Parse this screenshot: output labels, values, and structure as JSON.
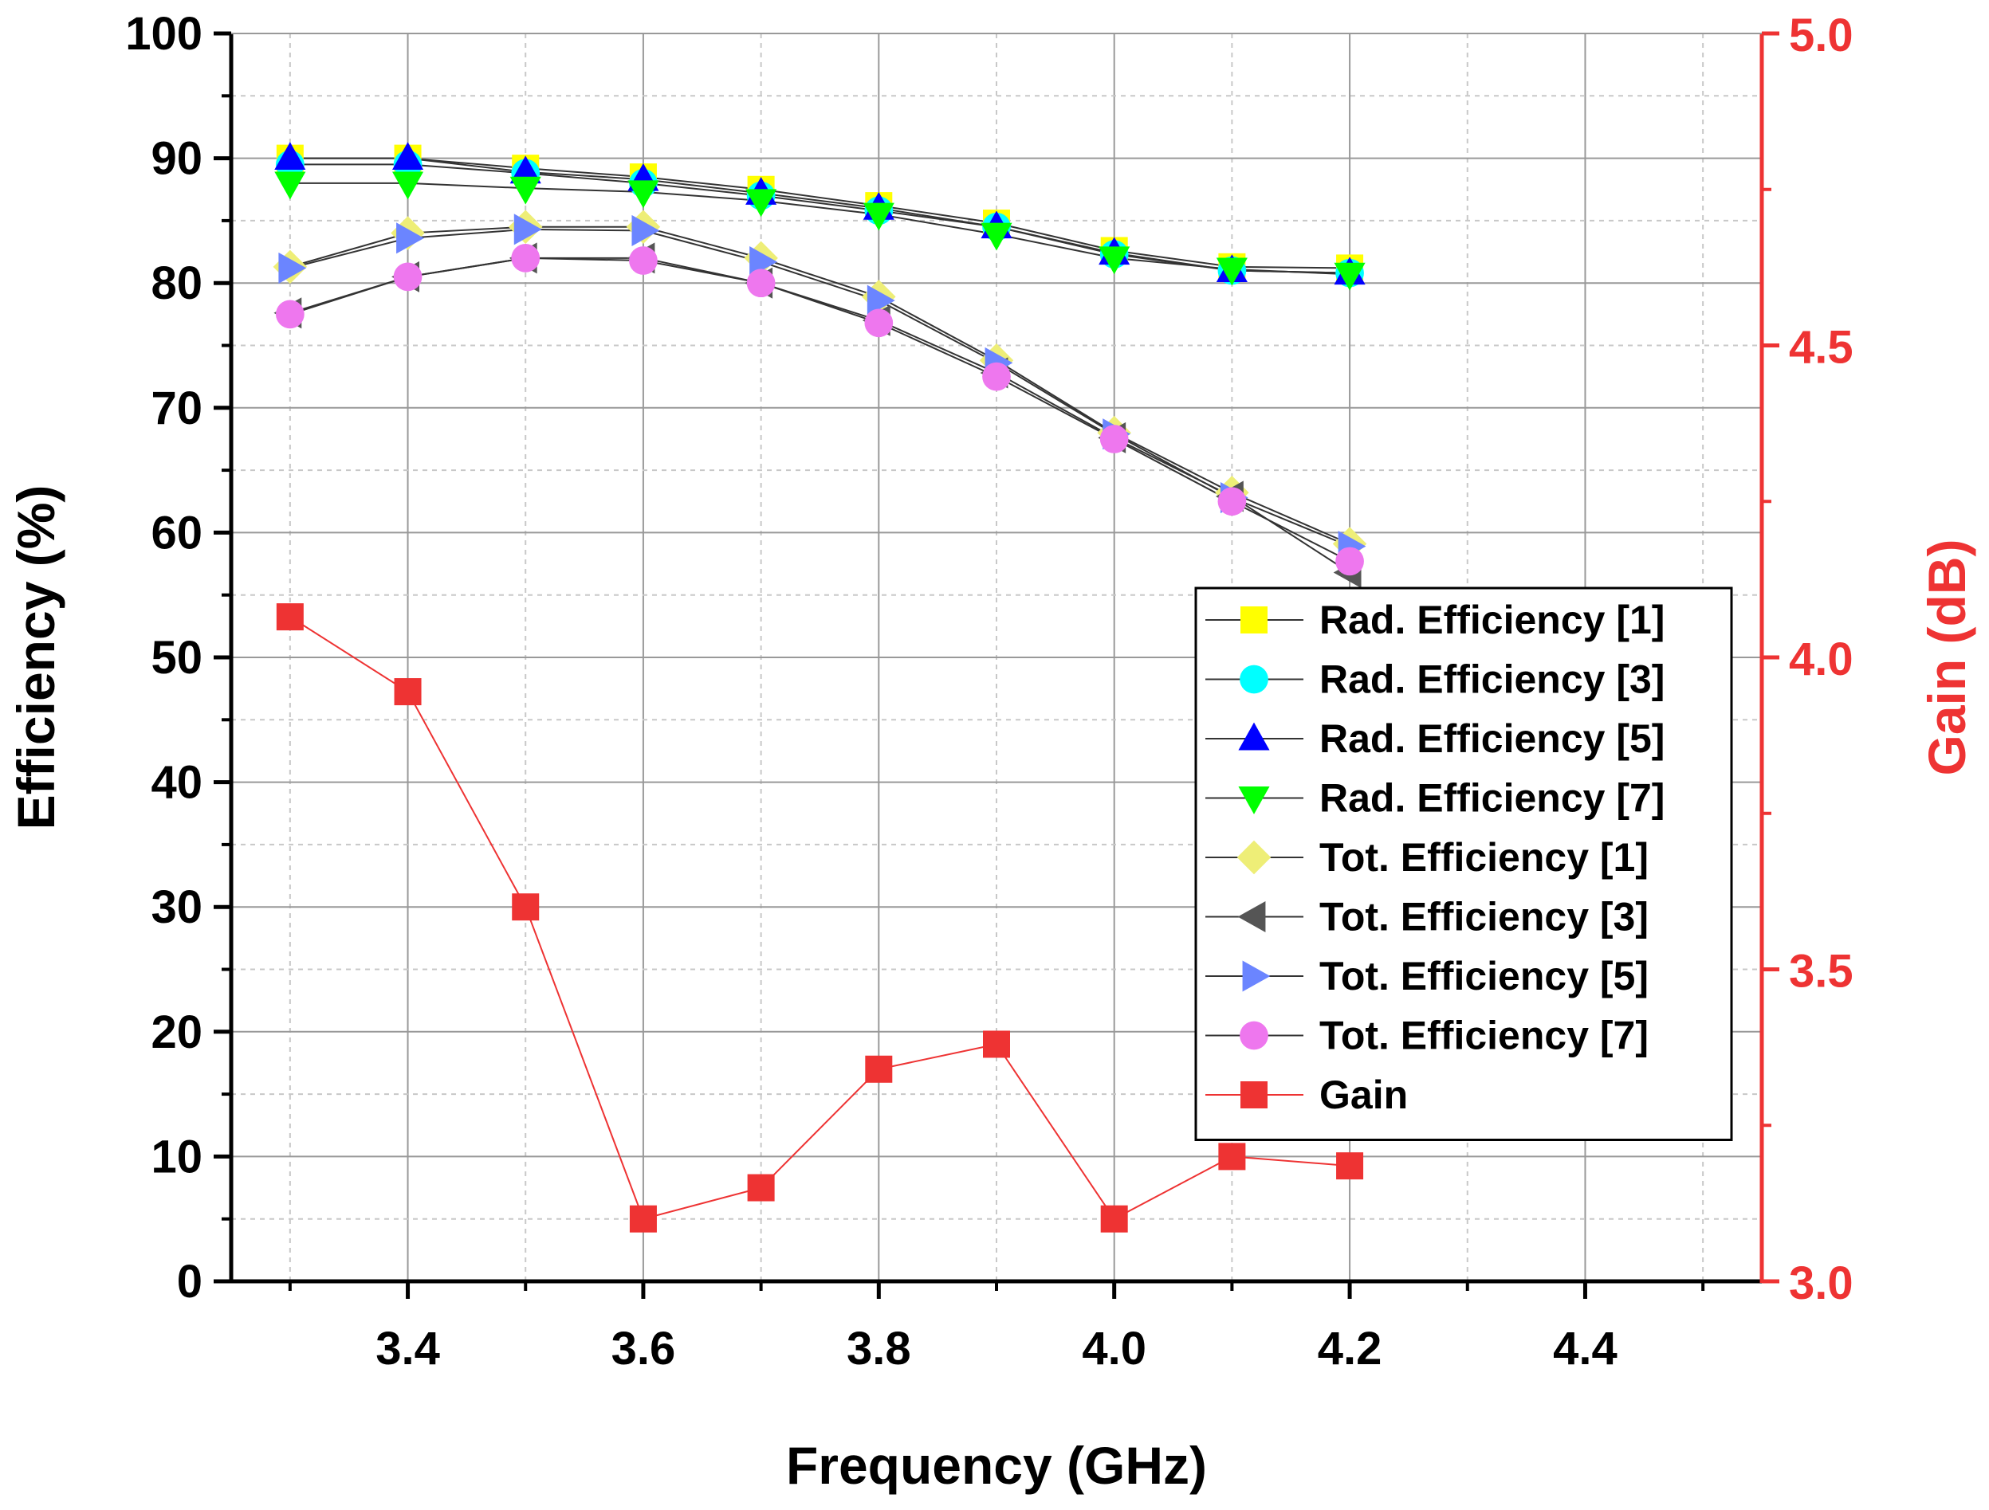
{
  "chart_data": {
    "type": "line",
    "title": "",
    "xlabel": "Frequency (GHz)",
    "ylabel": "Efficiency (%)",
    "y2label": "Gain (dB)",
    "xlim": [
      3.25,
      4.55
    ],
    "ylim": [
      0,
      100
    ],
    "y2lim": [
      3.0,
      5.0
    ],
    "xticks": [
      "3.4",
      "3.6",
      "3.8",
      "4.0",
      "4.2",
      "4.4"
    ],
    "yticks": [
      "0",
      "10",
      "20",
      "30",
      "40",
      "50",
      "60",
      "70",
      "80",
      "90",
      "100"
    ],
    "y2ticks": [
      "3.0",
      "3.5",
      "4.0",
      "4.5",
      "5.0"
    ],
    "grid": true,
    "legend_position": "right-middle",
    "x": [
      3.3,
      3.4,
      3.5,
      3.6,
      3.7,
      3.8,
      3.9,
      4.0,
      4.1,
      4.2
    ],
    "series": [
      {
        "name": "Rad. Efficiency [1]",
        "marker": "square",
        "color": "#ffff00",
        "axis": "left",
        "values": [
          90.0,
          90.0,
          89.2,
          88.5,
          87.5,
          86.2,
          84.8,
          82.6,
          81.3,
          81.2
        ]
      },
      {
        "name": "Rad. Efficiency [3]",
        "marker": "circle",
        "color": "#00ffff",
        "axis": "left",
        "values": [
          89.5,
          89.5,
          88.8,
          88.0,
          87.0,
          85.8,
          84.5,
          82.3,
          81.0,
          80.8
        ]
      },
      {
        "name": "Rad. Efficiency [5]",
        "marker": "triangle-up",
        "color": "#0000ff",
        "axis": "left",
        "values": [
          90.0,
          90.0,
          88.9,
          88.3,
          87.2,
          86.0,
          84.5,
          82.4,
          81.0,
          80.8
        ]
      },
      {
        "name": "Rad. Efficiency [7]",
        "marker": "triangle-down",
        "color": "#00ff00",
        "axis": "left",
        "values": [
          88.0,
          88.0,
          87.6,
          87.3,
          86.6,
          85.5,
          83.9,
          82.0,
          81.1,
          80.7
        ]
      },
      {
        "name": "Tot. Efficiency [1]",
        "marker": "diamond",
        "color": "#eeee77",
        "axis": "left",
        "values": [
          81.3,
          84.0,
          84.5,
          84.5,
          82.0,
          78.9,
          73.8,
          68.0,
          63.2,
          59.1
        ]
      },
      {
        "name": "Tot. Efficiency [3]",
        "marker": "triangle-left",
        "color": "#555555",
        "axis": "left",
        "values": [
          77.6,
          80.5,
          82.0,
          82.0,
          80.0,
          77.0,
          72.8,
          67.6,
          62.9,
          56.8
        ]
      },
      {
        "name": "Tot. Efficiency [5]",
        "marker": "triangle-right",
        "color": "#6b85ff",
        "axis": "left",
        "values": [
          81.2,
          83.6,
          84.3,
          84.2,
          81.7,
          78.6,
          73.6,
          67.9,
          62.8,
          58.9
        ]
      },
      {
        "name": "Tot. Efficiency [7]",
        "marker": "circle",
        "color": "#ee77ee",
        "axis": "left",
        "values": [
          77.5,
          80.5,
          82.0,
          81.8,
          80.0,
          76.8,
          72.5,
          67.5,
          62.5,
          57.7
        ]
      },
      {
        "name": "Gain",
        "marker": "square",
        "color": "#ee3333",
        "axis": "right",
        "values": [
          4.065,
          3.945,
          3.6,
          3.1,
          3.15,
          3.34,
          3.38,
          3.1,
          3.2,
          3.185
        ]
      }
    ]
  },
  "colors": {
    "axis_left": "#000000",
    "axis_right": "#ee3333",
    "grid_major": "#999999",
    "grid_minor": "#c8c8c8",
    "line": "#333333"
  }
}
